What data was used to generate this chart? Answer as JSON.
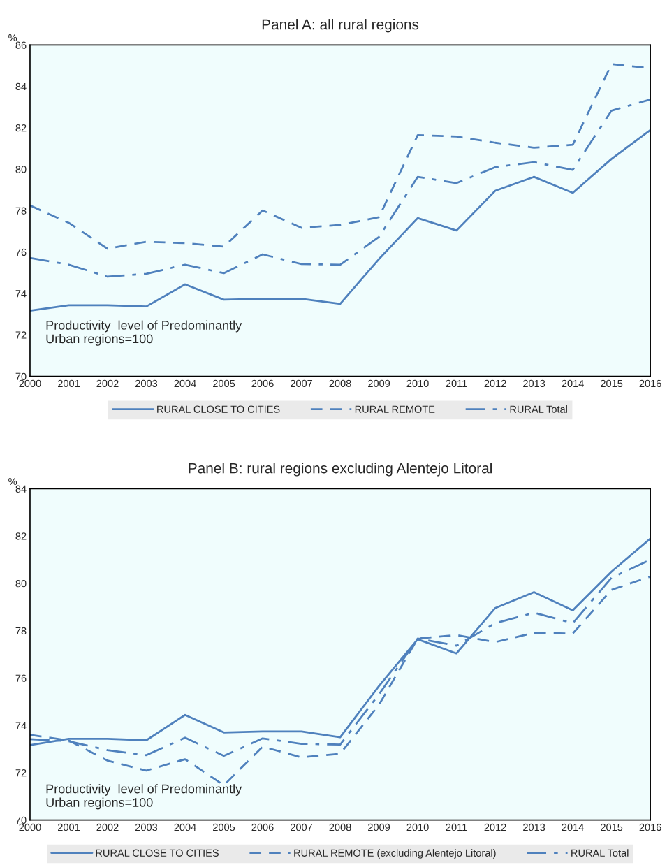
{
  "chart_data": [
    {
      "type": "line",
      "title": "Panel A: all rural regions",
      "ylabel": "%",
      "x": [
        2000,
        2001,
        2002,
        2003,
        2004,
        2005,
        2006,
        2007,
        2008,
        2009,
        2010,
        2011,
        2012,
        2013,
        2014,
        2015,
        2016
      ],
      "xlim": [
        2000,
        2016
      ],
      "xticks": [
        2000,
        2001,
        2002,
        2003,
        2004,
        2005,
        2006,
        2007,
        2008,
        2009,
        2010,
        2011,
        2012,
        2013,
        2014,
        2015,
        2016
      ],
      "ylim": [
        70,
        86
      ],
      "yticks": [
        70,
        72,
        74,
        76,
        78,
        80,
        82,
        84,
        86
      ],
      "grid": false,
      "legend": "bottom",
      "marker": "none",
      "annotations": [
        "Productivity  level of Predominantly\nUrban regions=100"
      ],
      "series": [
        {
          "name": "RURAL CLOSE TO CITIES",
          "color": "#4f81bd",
          "line_style": "solid",
          "values": [
            73.17,
            73.43,
            73.43,
            73.37,
            74.44,
            73.7,
            73.74,
            73.74,
            73.5,
            75.66,
            77.64,
            77.04,
            78.96,
            79.63,
            78.86,
            80.5,
            81.89
          ]
        },
        {
          "name": "RURAL REMOTE",
          "color": "#4f81bd",
          "line_style": "dashed",
          "values": [
            78.25,
            77.41,
            76.16,
            76.5,
            76.43,
            76.26,
            78.01,
            77.17,
            77.31,
            77.68,
            81.65,
            81.58,
            81.28,
            81.04,
            81.18,
            85.08,
            84.88
          ]
        },
        {
          "name": "RURAL Total",
          "color": "#4f81bd",
          "line_style": "dashdot",
          "values": [
            75.72,
            75.39,
            74.81,
            74.95,
            75.39,
            74.98,
            75.89,
            75.42,
            75.39,
            76.73,
            79.63,
            79.33,
            80.1,
            80.34,
            79.97,
            82.83,
            83.37
          ]
        }
      ]
    },
    {
      "type": "line",
      "title": "Panel B: rural regions excluding Alentejo Litoral",
      "ylabel": "%",
      "x": [
        2000,
        2001,
        2002,
        2003,
        2004,
        2005,
        2006,
        2007,
        2008,
        2009,
        2010,
        2011,
        2012,
        2013,
        2014,
        2015,
        2016
      ],
      "xlim": [
        2000,
        2016
      ],
      "xticks": [
        2000,
        2001,
        2002,
        2003,
        2004,
        2005,
        2006,
        2007,
        2008,
        2009,
        2010,
        2011,
        2012,
        2013,
        2014,
        2015,
        2016
      ],
      "ylim": [
        70,
        84
      ],
      "yticks": [
        70,
        72,
        74,
        76,
        78,
        80,
        82,
        84
      ],
      "grid": false,
      "legend": "bottom",
      "marker": "none",
      "annotations": [
        "Productivity  level of Predominantly\nUrban regions=100"
      ],
      "series": [
        {
          "name": "RURAL CLOSE TO CITIES",
          "color": "#4f81bd",
          "line_style": "solid",
          "values": [
            73.17,
            73.43,
            73.43,
            73.37,
            74.44,
            73.7,
            73.74,
            73.74,
            73.5,
            75.66,
            77.64,
            77.04,
            78.96,
            79.63,
            78.86,
            80.5,
            81.89
          ]
        },
        {
          "name": "RURAL REMOTE (excluding Alentejo Litoral)",
          "color": "#4f81bd",
          "line_style": "dashed",
          "values": [
            73.6,
            73.36,
            72.51,
            72.09,
            72.57,
            71.47,
            73.1,
            72.65,
            72.8,
            74.87,
            77.67,
            77.82,
            77.52,
            77.91,
            77.88,
            79.73,
            80.29
          ]
        },
        {
          "name": "RURAL Total",
          "color": "#4f81bd",
          "line_style": "dashdot",
          "values": [
            73.42,
            73.33,
            72.95,
            72.74,
            73.48,
            72.71,
            73.45,
            73.22,
            73.19,
            75.31,
            77.67,
            77.37,
            78.32,
            78.76,
            78.32,
            80.24,
            81.0
          ]
        }
      ]
    }
  ]
}
